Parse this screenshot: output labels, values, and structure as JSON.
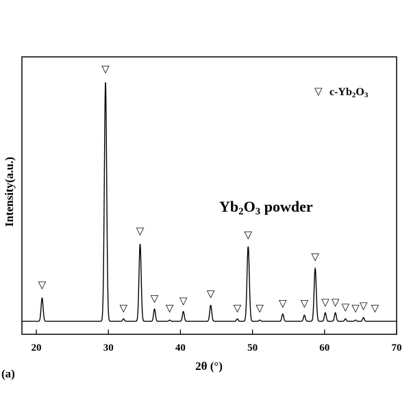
{
  "chart_data": {
    "type": "line",
    "panel_label": "(a)",
    "xlabel": "2θ (°)",
    "ylabel": "Intensity(a.u.)",
    "xlim": [
      18,
      70
    ],
    "ylim": [
      0,
      100
    ],
    "x_ticks": [
      20,
      30,
      40,
      50,
      60,
      70
    ],
    "y_ticks_shown": false,
    "legend": {
      "marker": "▽",
      "label_main": "c-Yb",
      "label_sub1": "2",
      "label_mid": "O",
      "label_sub2": "3",
      "placement": "top-right"
    },
    "annotation": {
      "main": "Yb",
      "sub1": "2",
      "mid": "O",
      "sub2": "3",
      "tail": " powder"
    },
    "baseline": 2.5,
    "peaks": [
      {
        "x": 20.8,
        "y": 12,
        "w": 0.14
      },
      {
        "x": 29.6,
        "y": 100,
        "w": 0.16
      },
      {
        "x": 32.1,
        "y": 3.5,
        "w": 0.12
      },
      {
        "x": 34.4,
        "y": 34,
        "w": 0.15
      },
      {
        "x": 36.4,
        "y": 7.5,
        "w": 0.13
      },
      {
        "x": 38.5,
        "y": 3,
        "w": 0.12
      },
      {
        "x": 40.4,
        "y": 6.5,
        "w": 0.13
      },
      {
        "x": 44.2,
        "y": 9,
        "w": 0.14
      },
      {
        "x": 47.9,
        "y": 3.5,
        "w": 0.12
      },
      {
        "x": 49.4,
        "y": 33,
        "w": 0.16
      },
      {
        "x": 51.0,
        "y": 3,
        "w": 0.12
      },
      {
        "x": 54.2,
        "y": 5.5,
        "w": 0.13
      },
      {
        "x": 57.2,
        "y": 5,
        "w": 0.13
      },
      {
        "x": 58.7,
        "y": 24,
        "w": 0.15
      },
      {
        "x": 60.1,
        "y": 6,
        "w": 0.13
      },
      {
        "x": 61.5,
        "y": 6,
        "w": 0.13
      },
      {
        "x": 62.9,
        "y": 3.5,
        "w": 0.12
      },
      {
        "x": 64.3,
        "y": 3,
        "w": 0.12
      },
      {
        "x": 65.4,
        "y": 4,
        "w": 0.12
      },
      {
        "x": 67.0,
        "y": 2.5,
        "w": 0.12
      }
    ],
    "marker_positions": [
      {
        "x": 20.8,
        "y": 16
      },
      {
        "x": 29.6,
        "y": 104
      },
      {
        "x": 32.1,
        "y": 6.5
      },
      {
        "x": 34.4,
        "y": 38
      },
      {
        "x": 36.4,
        "y": 10.5
      },
      {
        "x": 38.5,
        "y": 6.5
      },
      {
        "x": 40.4,
        "y": 9.5
      },
      {
        "x": 44.2,
        "y": 12.5
      },
      {
        "x": 47.9,
        "y": 6.5
      },
      {
        "x": 49.4,
        "y": 36.5
      },
      {
        "x": 51.0,
        "y": 6.5
      },
      {
        "x": 54.2,
        "y": 8.5
      },
      {
        "x": 57.2,
        "y": 8.5
      },
      {
        "x": 58.7,
        "y": 27.5
      },
      {
        "x": 60.1,
        "y": 9
      },
      {
        "x": 61.5,
        "y": 9
      },
      {
        "x": 62.9,
        "y": 7
      },
      {
        "x": 64.3,
        "y": 6.5
      },
      {
        "x": 65.4,
        "y": 7.5
      },
      {
        "x": 67.0,
        "y": 6.5
      }
    ]
  }
}
